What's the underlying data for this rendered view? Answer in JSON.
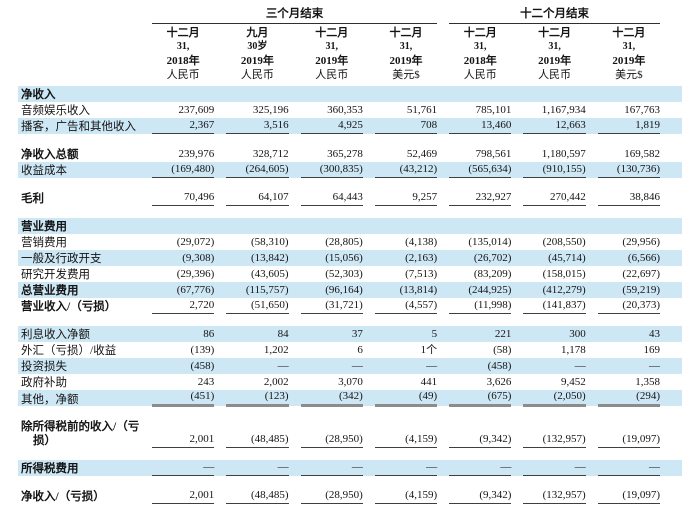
{
  "colors": {
    "band": "#cde7f5",
    "rule_thin": "#3f3f3f",
    "rule_thick": "#8c8c8c",
    "text": "#141414"
  },
  "table": {
    "group_headers": [
      {
        "label": "三个月结束",
        "span": 4
      },
      {
        "label": "十二个月结束",
        "span": 3
      }
    ],
    "column_headers": [
      {
        "lines": [
          "十二月",
          "31,",
          "2018年",
          "人民币"
        ]
      },
      {
        "lines": [
          "九月",
          "30岁",
          "2019年",
          "人民币"
        ]
      },
      {
        "lines": [
          "十二月",
          "31,",
          "2019年",
          "人民币"
        ]
      },
      {
        "lines": [
          "十二月",
          "31,",
          "2019年",
          "美元$"
        ]
      },
      {
        "lines": [
          "十二月",
          "31,",
          "2018年",
          "人民币"
        ]
      },
      {
        "lines": [
          "十二月",
          "31,",
          "2019年",
          "人民币"
        ]
      },
      {
        "lines": [
          "十二月",
          "31,",
          "2019年",
          "美元$"
        ]
      }
    ],
    "rows": [
      {
        "label": "净收入",
        "bold": true,
        "shaded": true,
        "values": []
      },
      {
        "label": "音频娱乐收入",
        "values": [
          "237,609",
          "325,196",
          "360,353",
          "51,761",
          "785,101",
          "1,167,934",
          "167,763"
        ]
      },
      {
        "label": "播客，广告和其他收入",
        "shaded": true,
        "rule": "thin",
        "values": [
          "2,367",
          "3,516",
          "4,925",
          "708",
          "13,460",
          "12,663",
          "1,819"
        ]
      },
      {
        "type": "spacer"
      },
      {
        "label": "净收入总额",
        "bold": true,
        "values": [
          "239,976",
          "328,712",
          "365,278",
          "52,469",
          "798,561",
          "1,180,597",
          "169,582"
        ]
      },
      {
        "label": "收益成本",
        "shaded": true,
        "rule": "thin",
        "values": [
          "(169,480)",
          "(264,605)",
          "(300,835)",
          "(43,212)",
          "(565,634)",
          "(910,155)",
          "(130,736)"
        ]
      },
      {
        "type": "spacer"
      },
      {
        "label": "毛利",
        "bold": true,
        "rule": "thin",
        "values": [
          "70,496",
          "64,107",
          "64,443",
          "9,257",
          "232,927",
          "270,442",
          "38,846"
        ]
      },
      {
        "type": "spacer"
      },
      {
        "label": "营业费用",
        "bold": true,
        "shaded": true,
        "values": []
      },
      {
        "label": "营销费用",
        "values": [
          "(29,072)",
          "(58,310)",
          "(28,805)",
          "(4,138)",
          "(135,014)",
          "(208,550)",
          "(29,956)"
        ]
      },
      {
        "label": "一般及行政开支",
        "shaded": true,
        "values": [
          "(9,308)",
          "(13,842)",
          "(15,056)",
          "(2,163)",
          "(26,702)",
          "(45,714)",
          "(6,566)"
        ]
      },
      {
        "label": "研究开发费用",
        "values": [
          "(29,396)",
          "(43,605)",
          "(52,303)",
          "(7,513)",
          "(83,209)",
          "(158,015)",
          "(22,697)"
        ]
      },
      {
        "label": "总营业费用",
        "bold": true,
        "shaded": true,
        "values": [
          "(67,776)",
          "(115,757)",
          "(96,164)",
          "(13,814)",
          "(244,925)",
          "(412,279)",
          "(59,219)"
        ]
      },
      {
        "label": "营业收入/（亏损）",
        "bold": true,
        "rule": "thin",
        "values": [
          "2,720",
          "(51,650)",
          "(31,721)",
          "(4,557)",
          "(11,998)",
          "(141,837)",
          "(20,373)"
        ]
      },
      {
        "type": "spacer"
      },
      {
        "label": "利息收入净额",
        "shaded": true,
        "values": [
          "86",
          "84",
          "37",
          "5",
          "221",
          "300",
          "43"
        ]
      },
      {
        "label": "外汇（亏损）/收益",
        "values": [
          "(139)",
          "1,202",
          "6",
          "1个",
          "(58)",
          "1,178",
          "169"
        ]
      },
      {
        "label": "投资损失",
        "shaded": true,
        "values": [
          "(458)",
          "—",
          "—",
          "—",
          "(458)",
          "—",
          "—"
        ]
      },
      {
        "label": "政府补助",
        "values": [
          "243",
          "2,002",
          "3,070",
          "441",
          "3,626",
          "9,452",
          "1,358"
        ]
      },
      {
        "label": "其他，净额",
        "shaded": true,
        "rule": "thick",
        "values": [
          "(451)",
          "(123)",
          "(342)",
          "(49)",
          "(675)",
          "(2,050)",
          "(294)"
        ]
      },
      {
        "type": "spacer"
      },
      {
        "label_lines": [
          "除所得税前的收入/（亏",
          "损）"
        ],
        "bold": true,
        "rule": "thin",
        "two_line": true,
        "values": [
          "2,001",
          "(48,485)",
          "(28,950)",
          "(4,159)",
          "(9,342)",
          "(132,957)",
          "(19,097)"
        ]
      },
      {
        "type": "spacer"
      },
      {
        "label": "所得税费用",
        "bold": true,
        "shaded": true,
        "rule": "thin",
        "values": [
          "—",
          "—",
          "—",
          "—",
          "—",
          "—",
          "—"
        ]
      },
      {
        "type": "spacer"
      },
      {
        "label": "净收入/（亏损）",
        "bold": true,
        "rule": "thin",
        "values": [
          "2,001",
          "(48,485)",
          "(28,950)",
          "(4,159)",
          "(9,342)",
          "(132,957)",
          "(19,097)"
        ]
      }
    ]
  }
}
